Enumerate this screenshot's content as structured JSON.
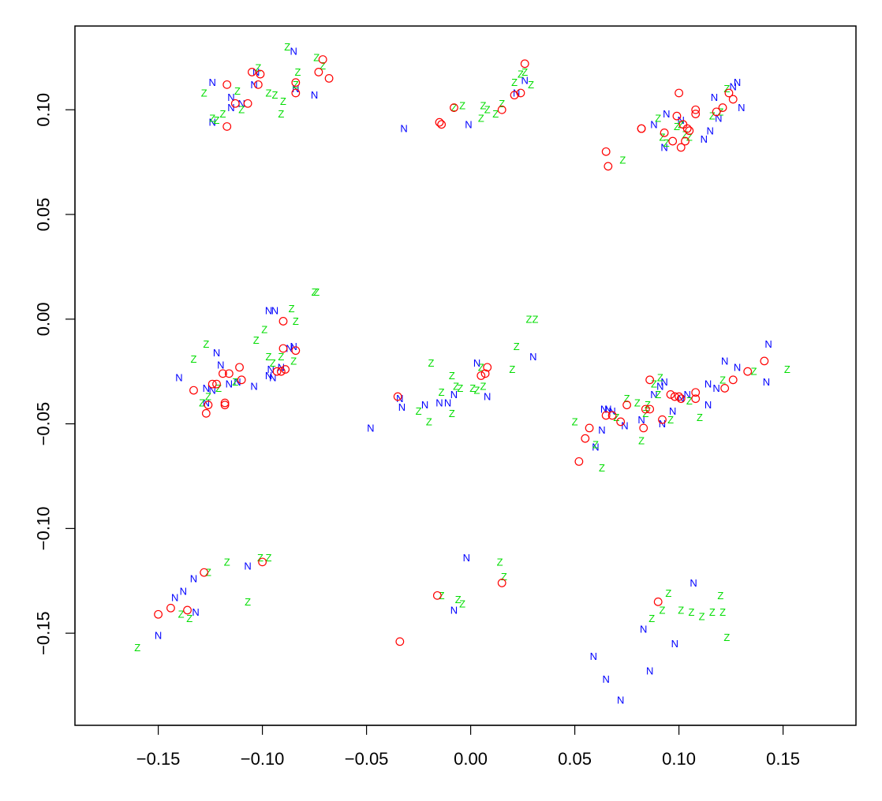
{
  "chart_data": {
    "type": "scatter",
    "title": "",
    "xlabel": "",
    "ylabel": "",
    "xlim": [
      -0.19,
      0.185
    ],
    "ylim": [
      -0.194,
      0.14
    ],
    "xticks": [
      -0.15,
      -0.1,
      -0.05,
      0.0,
      0.05,
      0.1,
      0.15
    ],
    "xtick_labels": [
      "−0.15",
      "−0.10",
      "−0.05",
      "0.00",
      "0.05",
      "0.10",
      "0.15"
    ],
    "yticks": [
      -0.15,
      -0.1,
      -0.05,
      0.0,
      0.05,
      0.1
    ],
    "ytick_labels": [
      "−0.15",
      "−0.10",
      "−0.05",
      "0.00",
      "0.05",
      "0.10"
    ],
    "grid": false,
    "series": [
      {
        "marker": "N",
        "color": "#0000FF",
        "points": [
          [
            -0.124,
            0.113
          ],
          [
            -0.124,
            0.094
          ],
          [
            -0.115,
            0.106
          ],
          [
            -0.115,
            0.101
          ],
          [
            -0.11,
            0.103
          ],
          [
            -0.103,
            0.118
          ],
          [
            -0.104,
            0.112
          ],
          [
            -0.084,
            0.11
          ],
          [
            -0.075,
            0.107
          ],
          [
            -0.085,
            0.128
          ],
          [
            -0.032,
            0.091
          ],
          [
            -0.001,
            0.093
          ],
          [
            0.022,
            0.108
          ],
          [
            0.026,
            0.114
          ],
          [
            0.088,
            0.093
          ],
          [
            0.094,
            0.098
          ],
          [
            0.101,
            0.095
          ],
          [
            0.093,
            0.082
          ],
          [
            0.112,
            0.086
          ],
          [
            0.115,
            0.09
          ],
          [
            0.119,
            0.096
          ],
          [
            0.117,
            0.106
          ],
          [
            0.126,
            0.111
          ],
          [
            0.128,
            0.113
          ],
          [
            0.13,
            0.101
          ],
          [
            -0.14,
            -0.028
          ],
          [
            -0.122,
            -0.016
          ],
          [
            -0.12,
            -0.022
          ],
          [
            -0.127,
            -0.033
          ],
          [
            -0.127,
            -0.04
          ],
          [
            -0.124,
            -0.034
          ],
          [
            -0.116,
            -0.031
          ],
          [
            -0.112,
            -0.03
          ],
          [
            -0.104,
            -0.032
          ],
          [
            -0.097,
            -0.027
          ],
          [
            -0.096,
            -0.024
          ],
          [
            -0.095,
            -0.028
          ],
          [
            -0.091,
            -0.023
          ],
          [
            -0.097,
            0.004
          ],
          [
            -0.094,
            0.004
          ],
          [
            -0.087,
            -0.014
          ],
          [
            -0.085,
            -0.013
          ],
          [
            -0.034,
            -0.038
          ],
          [
            -0.033,
            -0.042
          ],
          [
            -0.022,
            -0.041
          ],
          [
            -0.015,
            -0.04
          ],
          [
            -0.011,
            -0.04
          ],
          [
            -0.008,
            -0.036
          ],
          [
            0.003,
            -0.021
          ],
          [
            0.008,
            -0.037
          ],
          [
            0.03,
            -0.018
          ],
          [
            -0.048,
            -0.052
          ],
          [
            0.064,
            -0.043
          ],
          [
            0.066,
            -0.043
          ],
          [
            0.068,
            -0.044
          ],
          [
            0.063,
            -0.053
          ],
          [
            0.06,
            -0.061
          ],
          [
            0.074,
            -0.051
          ],
          [
            0.082,
            -0.048
          ],
          [
            0.088,
            -0.036
          ],
          [
            0.091,
            -0.032
          ],
          [
            0.093,
            -0.03
          ],
          [
            0.092,
            -0.05
          ],
          [
            0.097,
            -0.044
          ],
          [
            0.101,
            -0.038
          ],
          [
            0.104,
            -0.036
          ],
          [
            0.114,
            -0.041
          ],
          [
            0.114,
            -0.031
          ],
          [
            0.118,
            -0.033
          ],
          [
            0.122,
            -0.02
          ],
          [
            0.128,
            -0.023
          ],
          [
            0.142,
            -0.03
          ],
          [
            0.143,
            -0.012
          ],
          [
            -0.15,
            -0.151
          ],
          [
            -0.142,
            -0.133
          ],
          [
            -0.138,
            -0.13
          ],
          [
            -0.133,
            -0.124
          ],
          [
            -0.132,
            -0.14
          ],
          [
            -0.107,
            -0.118
          ],
          [
            -0.002,
            -0.114
          ],
          [
            -0.008,
            -0.139
          ],
          [
            0.059,
            -0.161
          ],
          [
            0.065,
            -0.172
          ],
          [
            0.072,
            -0.182
          ],
          [
            0.083,
            -0.148
          ],
          [
            0.086,
            -0.168
          ],
          [
            0.098,
            -0.155
          ],
          [
            0.107,
            -0.126
          ]
        ]
      },
      {
        "marker": "Z",
        "color": "#00DD00",
        "points": [
          [
            -0.128,
            0.108
          ],
          [
            -0.124,
            0.096
          ],
          [
            -0.122,
            0.095
          ],
          [
            -0.119,
            0.098
          ],
          [
            -0.112,
            0.109
          ],
          [
            -0.11,
            0.1
          ],
          [
            -0.097,
            0.108
          ],
          [
            -0.094,
            0.107
          ],
          [
            -0.09,
            0.104
          ],
          [
            -0.083,
            0.118
          ],
          [
            -0.084,
            0.112
          ],
          [
            -0.074,
            0.125
          ],
          [
            -0.071,
            0.121
          ],
          [
            -0.091,
            0.098
          ],
          [
            -0.088,
            0.13
          ],
          [
            -0.102,
            0.12
          ],
          [
            -0.008,
            0.101
          ],
          [
            -0.004,
            0.102
          ],
          [
            0.005,
            0.096
          ],
          [
            0.006,
            0.102
          ],
          [
            0.008,
            0.1
          ],
          [
            0.012,
            0.098
          ],
          [
            0.015,
            0.103
          ],
          [
            0.021,
            0.113
          ],
          [
            0.024,
            0.117
          ],
          [
            0.026,
            0.118
          ],
          [
            0.029,
            0.112
          ],
          [
            0.073,
            0.076
          ],
          [
            0.09,
            0.096
          ],
          [
            0.092,
            0.087
          ],
          [
            0.094,
            0.084
          ],
          [
            0.099,
            0.092
          ],
          [
            0.101,
            0.093
          ],
          [
            0.103,
            0.088
          ],
          [
            0.105,
            0.087
          ],
          [
            0.116,
            0.097
          ],
          [
            0.12,
            0.099
          ],
          [
            0.123,
            0.11
          ],
          [
            -0.133,
            -0.019
          ],
          [
            -0.127,
            -0.012
          ],
          [
            -0.129,
            -0.04
          ],
          [
            -0.126,
            -0.037
          ],
          [
            -0.121,
            -0.033
          ],
          [
            -0.113,
            -0.03
          ],
          [
            -0.103,
            -0.01
          ],
          [
            -0.099,
            -0.005
          ],
          [
            -0.097,
            -0.018
          ],
          [
            -0.095,
            -0.021
          ],
          [
            -0.091,
            -0.018
          ],
          [
            -0.086,
            0.005
          ],
          [
            -0.084,
            -0.001
          ],
          [
            -0.074,
            0.013
          ],
          [
            -0.075,
            0.013
          ],
          [
            -0.085,
            -0.02
          ],
          [
            -0.025,
            -0.044
          ],
          [
            -0.02,
            -0.049
          ],
          [
            -0.014,
            -0.035
          ],
          [
            -0.009,
            -0.045
          ],
          [
            -0.007,
            -0.032
          ],
          [
            -0.005,
            -0.033
          ],
          [
            0.001,
            -0.033
          ],
          [
            0.003,
            -0.034
          ],
          [
            0.006,
            -0.032
          ],
          [
            0.005,
            -0.023
          ],
          [
            0.02,
            -0.024
          ],
          [
            0.022,
            -0.013
          ],
          [
            0.028,
            0.0
          ],
          [
            0.031,
            0.0
          ],
          [
            -0.019,
            -0.021
          ],
          [
            -0.009,
            -0.027
          ],
          [
            0.05,
            -0.049
          ],
          [
            0.06,
            -0.06
          ],
          [
            0.063,
            -0.071
          ],
          [
            0.07,
            -0.047
          ],
          [
            0.075,
            -0.038
          ],
          [
            0.08,
            -0.04
          ],
          [
            0.082,
            -0.058
          ],
          [
            0.084,
            -0.045
          ],
          [
            0.085,
            -0.041
          ],
          [
            0.09,
            -0.036
          ],
          [
            0.096,
            -0.048
          ],
          [
            0.105,
            -0.039
          ],
          [
            0.11,
            -0.047
          ],
          [
            0.121,
            -0.029
          ],
          [
            0.136,
            -0.025
          ],
          [
            0.152,
            -0.024
          ],
          [
            0.091,
            -0.028
          ],
          [
            0.088,
            -0.031
          ],
          [
            -0.16,
            -0.157
          ],
          [
            -0.139,
            -0.141
          ],
          [
            -0.135,
            -0.143
          ],
          [
            -0.126,
            -0.121
          ],
          [
            -0.117,
            -0.116
          ],
          [
            -0.107,
            -0.135
          ],
          [
            -0.101,
            -0.114
          ],
          [
            -0.097,
            -0.114
          ],
          [
            -0.014,
            -0.132
          ],
          [
            -0.006,
            -0.134
          ],
          [
            0.014,
            -0.116
          ],
          [
            0.016,
            -0.123
          ],
          [
            -0.004,
            -0.136
          ],
          [
            0.087,
            -0.143
          ],
          [
            0.092,
            -0.139
          ],
          [
            0.095,
            -0.131
          ],
          [
            0.101,
            -0.139
          ],
          [
            0.106,
            -0.14
          ],
          [
            0.111,
            -0.142
          ],
          [
            0.116,
            -0.14
          ],
          [
            0.12,
            -0.132
          ],
          [
            0.121,
            -0.14
          ],
          [
            0.123,
            -0.152
          ]
        ]
      },
      {
        "marker": "o",
        "color": "#FF0000",
        "points": [
          [
            -0.117,
            0.112
          ],
          [
            -0.117,
            0.092
          ],
          [
            -0.113,
            0.103
          ],
          [
            -0.107,
            0.103
          ],
          [
            -0.105,
            0.118
          ],
          [
            -0.102,
            0.112
          ],
          [
            -0.101,
            0.117
          ],
          [
            -0.084,
            0.108
          ],
          [
            -0.084,
            0.113
          ],
          [
            -0.073,
            0.118
          ],
          [
            -0.071,
            0.124
          ],
          [
            -0.068,
            0.115
          ],
          [
            -0.015,
            0.094
          ],
          [
            -0.014,
            0.093
          ],
          [
            -0.008,
            0.101
          ],
          [
            0.015,
            0.1
          ],
          [
            0.021,
            0.107
          ],
          [
            0.024,
            0.108
          ],
          [
            0.026,
            0.122
          ],
          [
            0.065,
            0.08
          ],
          [
            0.066,
            0.073
          ],
          [
            0.082,
            0.091
          ],
          [
            0.082,
            0.091
          ],
          [
            0.093,
            0.089
          ],
          [
            0.097,
            0.085
          ],
          [
            0.099,
            0.097
          ],
          [
            0.1,
            0.108
          ],
          [
            0.101,
            0.082
          ],
          [
            0.102,
            0.093
          ],
          [
            0.103,
            0.085
          ],
          [
            0.104,
            0.091
          ],
          [
            0.105,
            0.09
          ],
          [
            0.108,
            0.098
          ],
          [
            0.108,
            0.1
          ],
          [
            0.118,
            0.099
          ],
          [
            0.121,
            0.101
          ],
          [
            0.124,
            0.108
          ],
          [
            0.126,
            0.105
          ],
          [
            -0.133,
            -0.034
          ],
          [
            -0.127,
            -0.045
          ],
          [
            -0.126,
            -0.041
          ],
          [
            -0.124,
            -0.031
          ],
          [
            -0.122,
            -0.031
          ],
          [
            -0.119,
            -0.026
          ],
          [
            -0.118,
            -0.04
          ],
          [
            -0.118,
            -0.041
          ],
          [
            -0.116,
            -0.026
          ],
          [
            -0.111,
            -0.023
          ],
          [
            -0.11,
            -0.029
          ],
          [
            -0.093,
            -0.025
          ],
          [
            -0.091,
            -0.025
          ],
          [
            -0.089,
            -0.024
          ],
          [
            -0.09,
            -0.014
          ],
          [
            -0.084,
            -0.015
          ],
          [
            -0.09,
            -0.001
          ],
          [
            -0.035,
            -0.037
          ],
          [
            0.005,
            -0.027
          ],
          [
            0.007,
            -0.026
          ],
          [
            0.008,
            -0.023
          ],
          [
            0.052,
            -0.068
          ],
          [
            0.055,
            -0.057
          ],
          [
            0.057,
            -0.052
          ],
          [
            0.065,
            -0.046
          ],
          [
            0.068,
            -0.046
          ],
          [
            0.072,
            -0.049
          ],
          [
            0.075,
            -0.041
          ],
          [
            0.083,
            -0.052
          ],
          [
            0.084,
            -0.043
          ],
          [
            0.086,
            -0.043
          ],
          [
            0.086,
            -0.029
          ],
          [
            0.092,
            -0.048
          ],
          [
            0.096,
            -0.036
          ],
          [
            0.098,
            -0.037
          ],
          [
            0.1,
            -0.037
          ],
          [
            0.101,
            -0.038
          ],
          [
            0.108,
            -0.035
          ],
          [
            0.108,
            -0.038
          ],
          [
            0.122,
            -0.033
          ],
          [
            0.126,
            -0.029
          ],
          [
            0.133,
            -0.025
          ],
          [
            0.141,
            -0.02
          ]
        ]
      },
      {
        "marker": "o",
        "color": "#FF0000",
        "points": [
          [
            -0.15,
            -0.141
          ],
          [
            -0.144,
            -0.138
          ],
          [
            -0.136,
            -0.139
          ],
          [
            -0.128,
            -0.121
          ],
          [
            -0.1,
            -0.116
          ],
          [
            -0.034,
            -0.154
          ],
          [
            -0.016,
            -0.132
          ],
          [
            0.015,
            -0.126
          ],
          [
            0.09,
            -0.135
          ]
        ]
      }
    ]
  }
}
